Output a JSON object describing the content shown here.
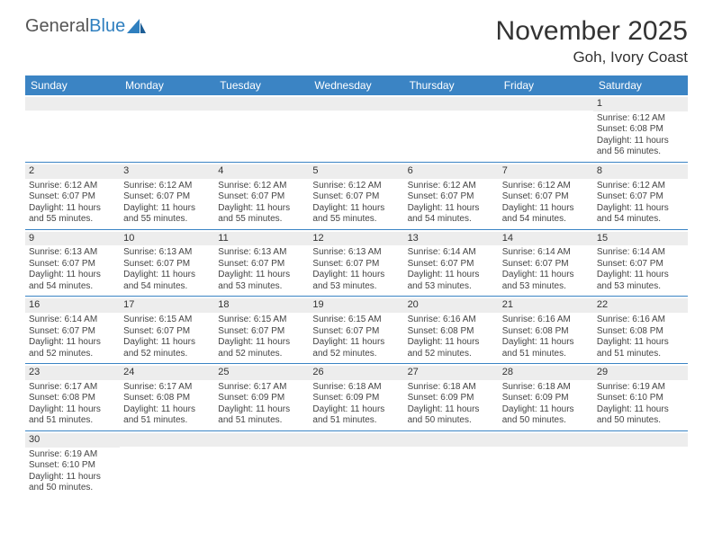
{
  "logo": {
    "part1": "General",
    "part2": "Blue"
  },
  "title": "November 2025",
  "location": "Goh, Ivory Coast",
  "colors": {
    "header_bg": "#3b84c4",
    "header_text": "#ffffff",
    "daynum_bg": "#ededed",
    "border": "#3b84c4",
    "logo_blue": "#2f7fbf"
  },
  "weekdays": [
    "Sunday",
    "Monday",
    "Tuesday",
    "Wednesday",
    "Thursday",
    "Friday",
    "Saturday"
  ],
  "weeks": [
    [
      {
        "n": "",
        "t": ""
      },
      {
        "n": "",
        "t": ""
      },
      {
        "n": "",
        "t": ""
      },
      {
        "n": "",
        "t": ""
      },
      {
        "n": "",
        "t": ""
      },
      {
        "n": "",
        "t": ""
      },
      {
        "n": "1",
        "t": "Sunrise: 6:12 AM\nSunset: 6:08 PM\nDaylight: 11 hours and 56 minutes."
      }
    ],
    [
      {
        "n": "2",
        "t": "Sunrise: 6:12 AM\nSunset: 6:07 PM\nDaylight: 11 hours and 55 minutes."
      },
      {
        "n": "3",
        "t": "Sunrise: 6:12 AM\nSunset: 6:07 PM\nDaylight: 11 hours and 55 minutes."
      },
      {
        "n": "4",
        "t": "Sunrise: 6:12 AM\nSunset: 6:07 PM\nDaylight: 11 hours and 55 minutes."
      },
      {
        "n": "5",
        "t": "Sunrise: 6:12 AM\nSunset: 6:07 PM\nDaylight: 11 hours and 55 minutes."
      },
      {
        "n": "6",
        "t": "Sunrise: 6:12 AM\nSunset: 6:07 PM\nDaylight: 11 hours and 54 minutes."
      },
      {
        "n": "7",
        "t": "Sunrise: 6:12 AM\nSunset: 6:07 PM\nDaylight: 11 hours and 54 minutes."
      },
      {
        "n": "8",
        "t": "Sunrise: 6:12 AM\nSunset: 6:07 PM\nDaylight: 11 hours and 54 minutes."
      }
    ],
    [
      {
        "n": "9",
        "t": "Sunrise: 6:13 AM\nSunset: 6:07 PM\nDaylight: 11 hours and 54 minutes."
      },
      {
        "n": "10",
        "t": "Sunrise: 6:13 AM\nSunset: 6:07 PM\nDaylight: 11 hours and 54 minutes."
      },
      {
        "n": "11",
        "t": "Sunrise: 6:13 AM\nSunset: 6:07 PM\nDaylight: 11 hours and 53 minutes."
      },
      {
        "n": "12",
        "t": "Sunrise: 6:13 AM\nSunset: 6:07 PM\nDaylight: 11 hours and 53 minutes."
      },
      {
        "n": "13",
        "t": "Sunrise: 6:14 AM\nSunset: 6:07 PM\nDaylight: 11 hours and 53 minutes."
      },
      {
        "n": "14",
        "t": "Sunrise: 6:14 AM\nSunset: 6:07 PM\nDaylight: 11 hours and 53 minutes."
      },
      {
        "n": "15",
        "t": "Sunrise: 6:14 AM\nSunset: 6:07 PM\nDaylight: 11 hours and 53 minutes."
      }
    ],
    [
      {
        "n": "16",
        "t": "Sunrise: 6:14 AM\nSunset: 6:07 PM\nDaylight: 11 hours and 52 minutes."
      },
      {
        "n": "17",
        "t": "Sunrise: 6:15 AM\nSunset: 6:07 PM\nDaylight: 11 hours and 52 minutes."
      },
      {
        "n": "18",
        "t": "Sunrise: 6:15 AM\nSunset: 6:07 PM\nDaylight: 11 hours and 52 minutes."
      },
      {
        "n": "19",
        "t": "Sunrise: 6:15 AM\nSunset: 6:07 PM\nDaylight: 11 hours and 52 minutes."
      },
      {
        "n": "20",
        "t": "Sunrise: 6:16 AM\nSunset: 6:08 PM\nDaylight: 11 hours and 52 minutes."
      },
      {
        "n": "21",
        "t": "Sunrise: 6:16 AM\nSunset: 6:08 PM\nDaylight: 11 hours and 51 minutes."
      },
      {
        "n": "22",
        "t": "Sunrise: 6:16 AM\nSunset: 6:08 PM\nDaylight: 11 hours and 51 minutes."
      }
    ],
    [
      {
        "n": "23",
        "t": "Sunrise: 6:17 AM\nSunset: 6:08 PM\nDaylight: 11 hours and 51 minutes."
      },
      {
        "n": "24",
        "t": "Sunrise: 6:17 AM\nSunset: 6:08 PM\nDaylight: 11 hours and 51 minutes."
      },
      {
        "n": "25",
        "t": "Sunrise: 6:17 AM\nSunset: 6:09 PM\nDaylight: 11 hours and 51 minutes."
      },
      {
        "n": "26",
        "t": "Sunrise: 6:18 AM\nSunset: 6:09 PM\nDaylight: 11 hours and 51 minutes."
      },
      {
        "n": "27",
        "t": "Sunrise: 6:18 AM\nSunset: 6:09 PM\nDaylight: 11 hours and 50 minutes."
      },
      {
        "n": "28",
        "t": "Sunrise: 6:18 AM\nSunset: 6:09 PM\nDaylight: 11 hours and 50 minutes."
      },
      {
        "n": "29",
        "t": "Sunrise: 6:19 AM\nSunset: 6:10 PM\nDaylight: 11 hours and 50 minutes."
      }
    ],
    [
      {
        "n": "30",
        "t": "Sunrise: 6:19 AM\nSunset: 6:10 PM\nDaylight: 11 hours and 50 minutes."
      },
      {
        "n": "",
        "t": ""
      },
      {
        "n": "",
        "t": ""
      },
      {
        "n": "",
        "t": ""
      },
      {
        "n": "",
        "t": ""
      },
      {
        "n": "",
        "t": ""
      },
      {
        "n": "",
        "t": ""
      }
    ]
  ]
}
